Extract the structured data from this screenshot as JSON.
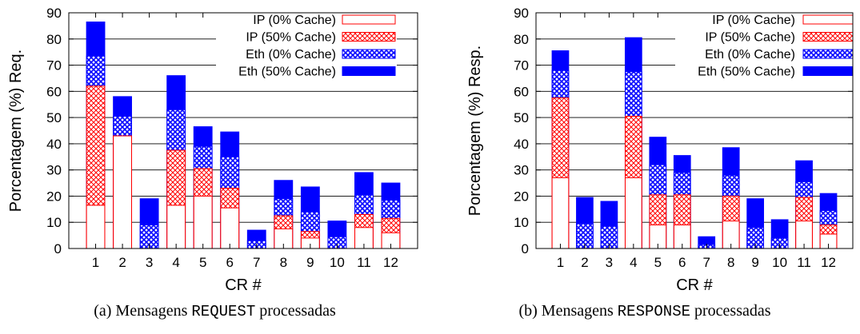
{
  "captions": [
    {
      "label": "(a)",
      "prefix": "Mensagens",
      "keyword": "REQUEST",
      "suffix": "processadas"
    },
    {
      "label": "(b)",
      "prefix": "Mensagens",
      "keyword": "RESPONSE",
      "suffix": "processadas"
    }
  ],
  "colors": {
    "red": "#ff0000",
    "blue": "#0000ff",
    "grid": "#000000"
  },
  "chart_data": [
    {
      "type": "bar",
      "stacked": "overlay",
      "xlabel": "CR #",
      "ylabel": "Porcentagem (%) Req.",
      "ylim": [
        0,
        90
      ],
      "yticks": [
        0,
        10,
        20,
        30,
        40,
        50,
        60,
        70,
        80,
        90
      ],
      "grid": "horizontal",
      "legend_position": "top-right",
      "categories": [
        "1",
        "2",
        "3",
        "4",
        "5",
        "6",
        "7",
        "8",
        "9",
        "10",
        "11",
        "12"
      ],
      "series": [
        {
          "name": "IP (0% Cache)",
          "style": "ip0",
          "values": [
            16.5,
            43,
            0,
            16.5,
            20,
            15.5,
            0,
            7.5,
            4,
            0,
            8,
            6
          ]
        },
        {
          "name": "IP (50% Cache)",
          "style": "ip50",
          "values": [
            62,
            43,
            0,
            37.5,
            30.5,
            23,
            0,
            12.5,
            6.5,
            0,
            13,
            11.5
          ]
        },
        {
          "name": "Eth (0% Cache)",
          "style": "eth0",
          "values": [
            73.5,
            50.5,
            9,
            53,
            39,
            35,
            3,
            19,
            14,
            4.5,
            20.5,
            18.5
          ]
        },
        {
          "name": "Eth (50% Cache)",
          "style": "eth50",
          "values": [
            86.5,
            58,
            19,
            66,
            46.5,
            44.5,
            7,
            26,
            23.5,
            10.5,
            29,
            25
          ]
        }
      ]
    },
    {
      "type": "bar",
      "stacked": "overlay",
      "xlabel": "CR #",
      "ylabel": "Porcentagem (%) Resp.",
      "ylim": [
        0,
        90
      ],
      "yticks": [
        0,
        10,
        20,
        30,
        40,
        50,
        60,
        70,
        80,
        90
      ],
      "grid": "horizontal",
      "legend_position": "top-right",
      "categories": [
        "1",
        "2",
        "3",
        "4",
        "5",
        "6",
        "7",
        "8",
        "9",
        "10",
        "11",
        "12"
      ],
      "series": [
        {
          "name": "IP (0% Cache)",
          "style": "ip0",
          "values": [
            27,
            0,
            0,
            27,
            9,
            9,
            0,
            10.5,
            0,
            0,
            10.5,
            5.5
          ]
        },
        {
          "name": "IP (50% Cache)",
          "style": "ip50",
          "values": [
            57.5,
            0,
            0,
            50.5,
            20.5,
            20.5,
            0,
            20,
            0,
            0,
            19.5,
            9
          ]
        },
        {
          "name": "Eth (0% Cache)",
          "style": "eth0",
          "values": [
            68,
            9.5,
            8.5,
            67.5,
            32,
            29,
            1.5,
            28,
            8,
            4,
            25.5,
            14.5
          ]
        },
        {
          "name": "Eth (50% Cache)",
          "style": "eth50",
          "values": [
            75.5,
            19.5,
            18,
            80.5,
            42.5,
            35.5,
            4.5,
            38.5,
            19,
            11,
            33.5,
            21
          ]
        }
      ]
    }
  ]
}
